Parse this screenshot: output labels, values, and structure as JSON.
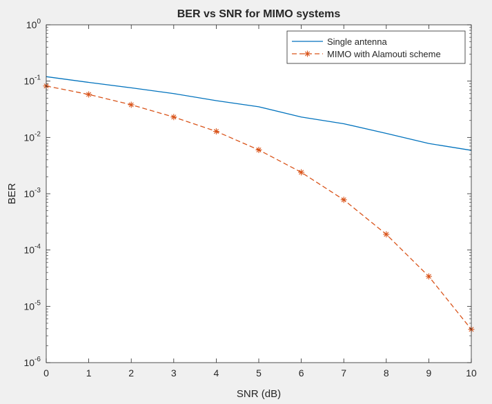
{
  "chart_data": {
    "type": "line",
    "title": "BER vs SNR for MIMO systems",
    "xlabel": "SNR (dB)",
    "ylabel": "BER",
    "xlim": [
      0,
      10
    ],
    "ylim": [
      1e-06,
      1
    ],
    "yscale": "log",
    "grid": false,
    "legend_position": "top-right",
    "x": [
      0,
      1,
      2,
      3,
      4,
      5,
      6,
      7,
      8,
      9,
      10
    ],
    "x_tick_labels": [
      "0",
      "1",
      "2",
      "3",
      "4",
      "5",
      "6",
      "7",
      "8",
      "9",
      "10"
    ],
    "y_ticks": [
      {
        "base": "10",
        "exp": "0"
      },
      {
        "base": "10",
        "exp": "-1"
      },
      {
        "base": "10",
        "exp": "-2"
      },
      {
        "base": "10",
        "exp": "-3"
      },
      {
        "base": "10",
        "exp": "-4"
      },
      {
        "base": "10",
        "exp": "-5"
      },
      {
        "base": "10",
        "exp": "-6"
      }
    ],
    "series": [
      {
        "name": "Single antenna",
        "color": "#0072bd",
        "line_style": "solid",
        "marker": "none",
        "values": [
          0.12,
          0.095,
          0.076,
          0.06,
          0.045,
          0.035,
          0.023,
          0.0175,
          0.0118,
          0.0078,
          0.0059
        ]
      },
      {
        "name": "MIMO with Alamouti scheme",
        "color": "#d95319",
        "line_style": "dashed",
        "marker": "asterisk",
        "values": [
          0.082,
          0.058,
          0.038,
          0.023,
          0.0128,
          0.006,
          0.0024,
          0.00078,
          0.00019,
          3.4e-05,
          3.9e-06
        ]
      }
    ]
  }
}
